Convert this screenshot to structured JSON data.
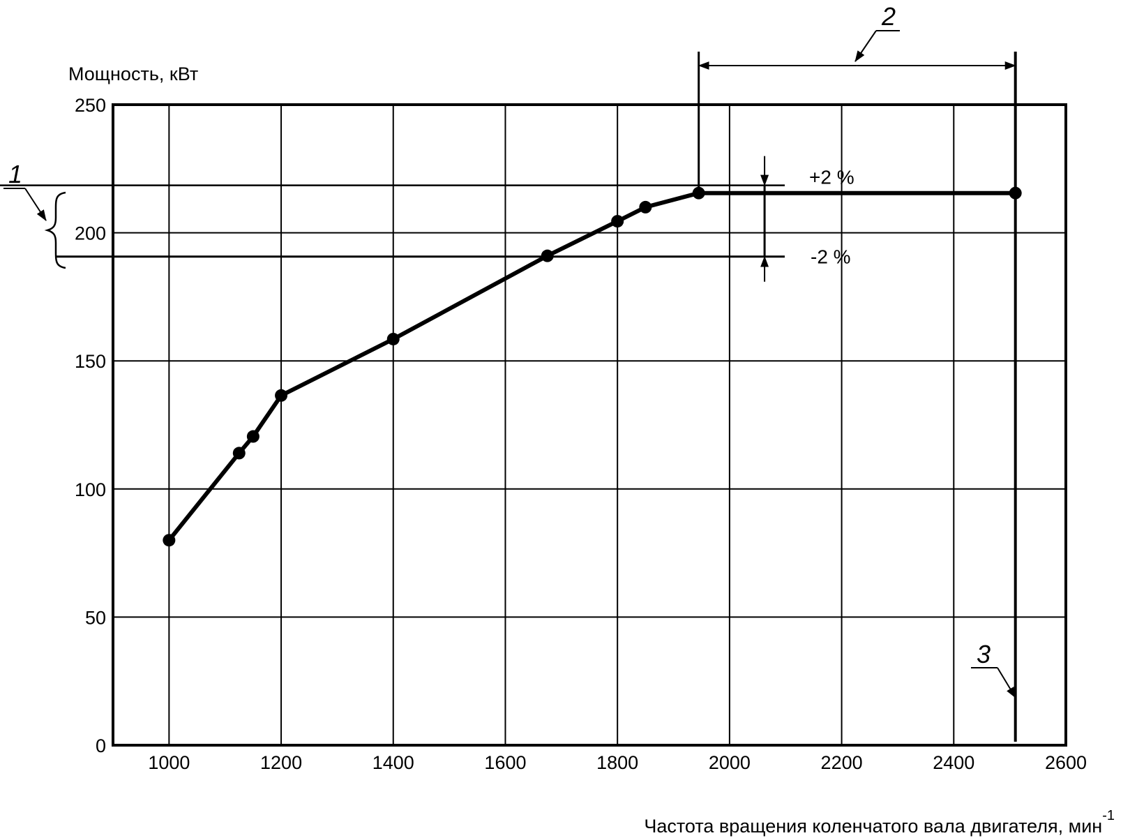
{
  "chart_data": {
    "type": "line",
    "xlabel": "Частота вращения коленчатого вала двигателя, мин",
    "xlabel_sup": "-1",
    "ylabel": "Мощность, кВт",
    "xlim": [
      900,
      2600
    ],
    "ylim": [
      0,
      250
    ],
    "x_ticks": [
      1000,
      1200,
      1400,
      1600,
      1800,
      2000,
      2200,
      2400,
      2600
    ],
    "y_ticks": [
      0,
      50,
      100,
      150,
      200,
      250
    ],
    "grid": true,
    "series": [
      {
        "points": [
          {
            "x": 1000,
            "y": 80
          },
          {
            "x": 1125,
            "y": 114
          },
          {
            "x": 1150,
            "y": 120.5
          },
          {
            "x": 1200,
            "y": 136.5
          },
          {
            "x": 1400,
            "y": 158.5
          },
          {
            "x": 1675,
            "y": 191
          },
          {
            "x": 1800,
            "y": 204.5
          },
          {
            "x": 1850,
            "y": 210
          },
          {
            "x": 1945,
            "y": 215.5
          },
          {
            "x": 2510,
            "y": 215.5
          }
        ]
      }
    ],
    "band": {
      "upper": 218.5,
      "lower": 190.7,
      "upper_label": "+2 %",
      "lower_label": "-2 %",
      "marker_x": 2060
    },
    "range_start_x": 1945,
    "range_end_x": 2510,
    "callouts": {
      "band": "1",
      "range": "2",
      "limit_line": "3"
    }
  }
}
